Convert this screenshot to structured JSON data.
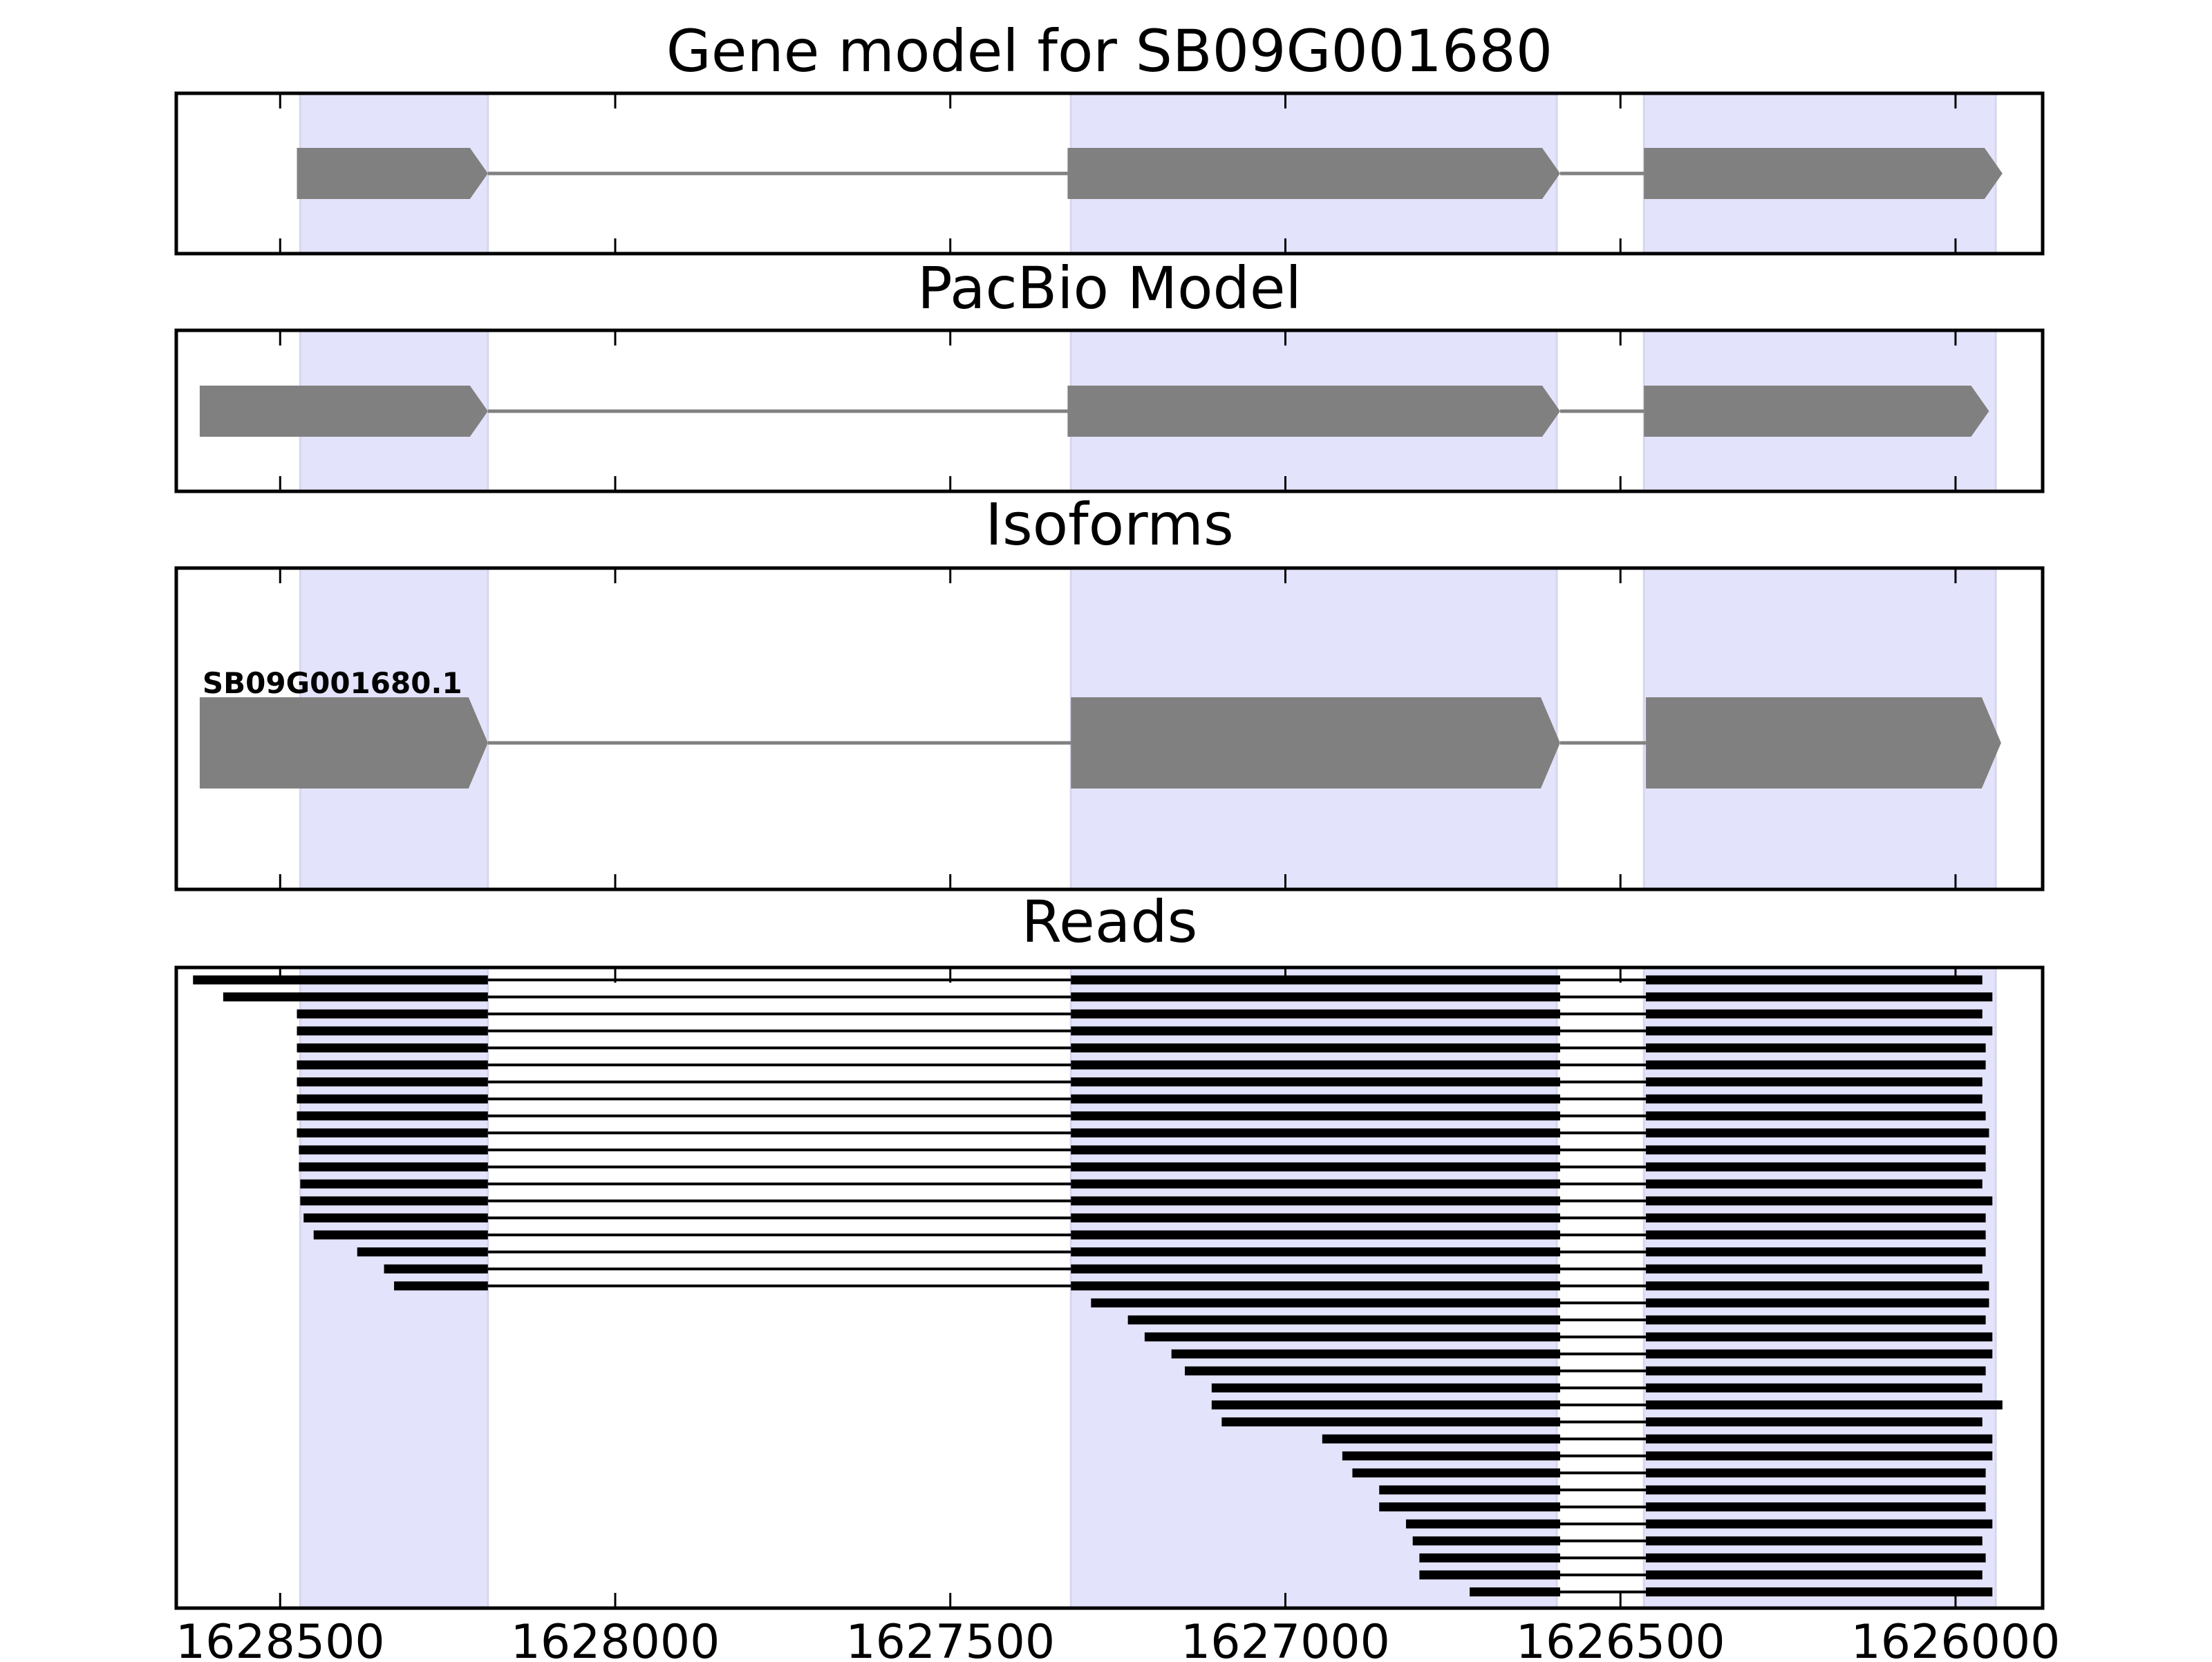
{
  "chart_data": {
    "type": "gene-track",
    "xaxis": {
      "reversed": true,
      "xlim": [
        1628655,
        1625870
      ],
      "ticks": [
        1628500,
        1628000,
        1627500,
        1627000,
        1626500,
        1626000
      ],
      "tick_labels": [
        "1628500",
        "1628000",
        "1627500",
        "1627000",
        "1626500",
        "1626000"
      ]
    },
    "exon_highlights": [
      {
        "start": 1628470,
        "end": 1628190
      },
      {
        "start": 1627320,
        "end": 1626595
      },
      {
        "start": 1626465,
        "end": 1625940
      }
    ],
    "panels": [
      {
        "title": "Gene model for SB09G001680",
        "blocks": [
          [
            1628475,
            1628190
          ],
          [
            1627325,
            1626590
          ],
          [
            1626465,
            1625930
          ]
        ]
      },
      {
        "title": "PacBio Model",
        "blocks": [
          [
            1628620,
            1628190
          ],
          [
            1627325,
            1626590
          ],
          [
            1626465,
            1625950
          ]
        ]
      },
      {
        "title": "Isoforms",
        "isoforms": [
          {
            "name": "SB09G001680.1",
            "blocks": [
              [
                1628620,
                1628190
              ],
              [
                1627320,
                1626590
              ],
              [
                1626462,
                1625932
              ]
            ]
          }
        ]
      },
      {
        "title": "Reads",
        "exon_block_2": [
          1627320,
          1626590
        ],
        "exon_block_3_start": 1626462,
        "reads": [
          {
            "s": 1628630,
            "e": 1625960
          },
          {
            "s": 1628585,
            "e": 1625945
          },
          {
            "s": 1628475,
            "e": 1625960
          },
          {
            "s": 1628475,
            "e": 1625945
          },
          {
            "s": 1628475,
            "e": 1625955
          },
          {
            "s": 1628475,
            "e": 1625955
          },
          {
            "s": 1628475,
            "e": 1625960
          },
          {
            "s": 1628475,
            "e": 1625960
          },
          {
            "s": 1628475,
            "e": 1625955
          },
          {
            "s": 1628475,
            "e": 1625950
          },
          {
            "s": 1628472,
            "e": 1625955
          },
          {
            "s": 1628472,
            "e": 1625955
          },
          {
            "s": 1628470,
            "e": 1625960
          },
          {
            "s": 1628470,
            "e": 1625945
          },
          {
            "s": 1628465,
            "e": 1625955
          },
          {
            "s": 1628450,
            "e": 1625955
          },
          {
            "s": 1628385,
            "e": 1625955
          },
          {
            "s": 1628345,
            "e": 1625960
          },
          {
            "s": 1628330,
            "e": 1625950
          },
          {
            "s": null,
            "e1": 1627290,
            "e": 1625950
          },
          {
            "s": null,
            "e1": 1627235,
            "e": 1625955
          },
          {
            "s": null,
            "e1": 1627210,
            "e": 1625945
          },
          {
            "s": null,
            "e1": 1627170,
            "e": 1625945
          },
          {
            "s": null,
            "e1": 1627150,
            "e": 1625955
          },
          {
            "s": null,
            "e1": 1627110,
            "e": 1625960
          },
          {
            "s": null,
            "e1": 1627110,
            "e": 1625930
          },
          {
            "s": null,
            "e1": 1627095,
            "e": 1625960
          },
          {
            "s": null,
            "e1": 1626945,
            "e": 1625945
          },
          {
            "s": null,
            "e1": 1626915,
            "e": 1625945
          },
          {
            "s": null,
            "e1": 1626900,
            "e": 1625955
          },
          {
            "s": null,
            "e1": 1626860,
            "e": 1625955
          },
          {
            "s": null,
            "e1": 1626860,
            "e": 1625955
          },
          {
            "s": null,
            "e1": 1626820,
            "e": 1625945
          },
          {
            "s": null,
            "e1": 1626810,
            "e": 1625960
          },
          {
            "s": null,
            "e1": 1626800,
            "e": 1625955
          },
          {
            "s": null,
            "e1": 1626800,
            "e": 1625960
          },
          {
            "s": null,
            "e1": 1626725,
            "e": 1625945
          }
        ]
      }
    ],
    "colors": {
      "exon": "#808080",
      "intron": "#808080",
      "highlight": "#e3e3fb",
      "highlight_edge": "#d6d6ef",
      "read": "#000000",
      "axis": "#000000"
    }
  }
}
